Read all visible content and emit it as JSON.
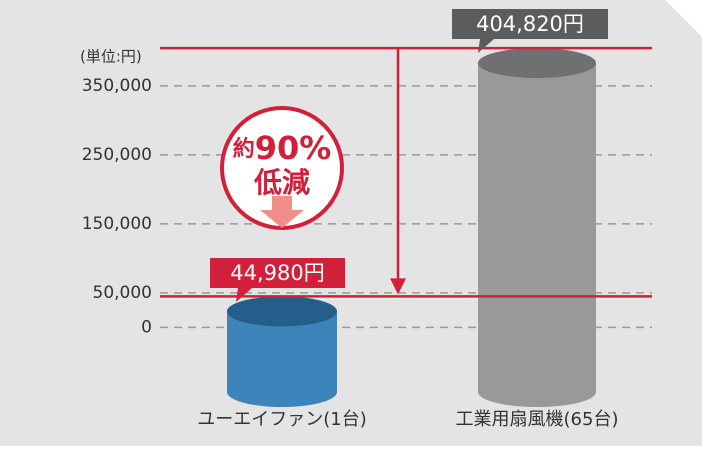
{
  "chart_data": {
    "type": "bar",
    "unit_label": "(単位:円)",
    "categories": [
      "ユーエイファン(1台)",
      "工業用扇風機(65台)"
    ],
    "values": [
      44980,
      404820
    ],
    "value_labels": [
      "44,980円",
      "404,820円"
    ],
    "colors": [
      "#3d84bb",
      "#98999b"
    ],
    "annotation": [
      "約",
      "90%",
      "低減"
    ],
    "ylim": [
      -40000,
      420000
    ],
    "yticks": [
      {
        "value": 0,
        "label": "0"
      },
      {
        "value": 50000,
        "label": "50,000"
      },
      {
        "value": 150000,
        "label": "150,000"
      },
      {
        "value": 250000,
        "label": "250,000"
      },
      {
        "value": 350000,
        "label": "350,000"
      }
    ],
    "grid": true
  }
}
